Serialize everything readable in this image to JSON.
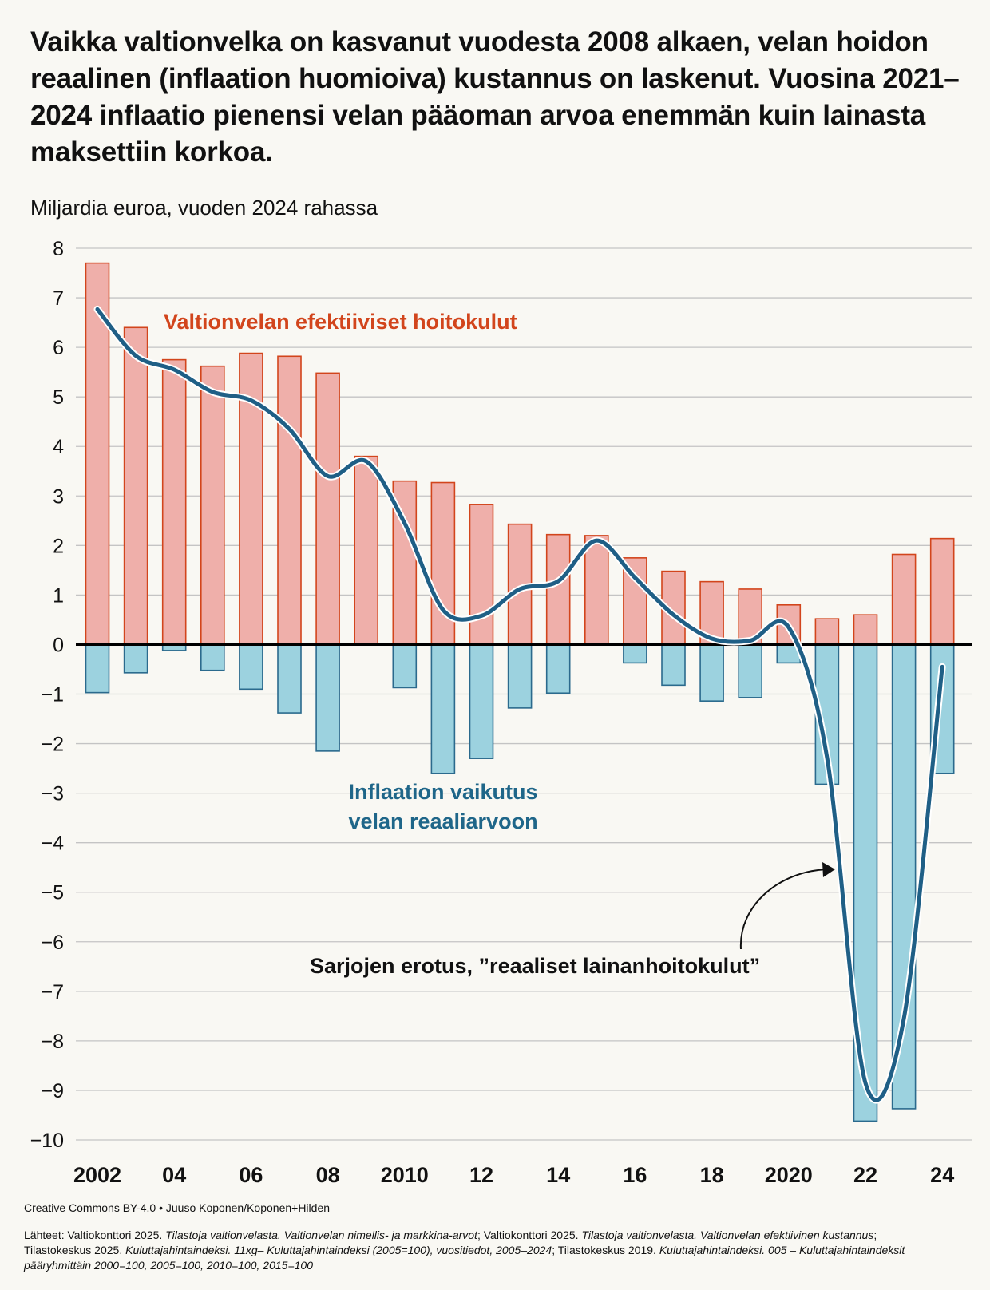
{
  "title": "Vaikka valtionvelka on kasvanut vuodesta 2008 alkaen, velan hoidon reaalinen (inflaation huomioiva) kustannus on laskenut. Vuosina 2021–2024 inflaatio pienensi velan pääoman arvoa enemmän kuin lainasta maksettiin korkoa.",
  "subtitle": "Miljardia euroa, vuoden 2024 rahassa",
  "colors": {
    "cost_fill": "#efafaa",
    "cost_stroke": "#d2451c",
    "cost_label": "#d2451c",
    "inflation_fill": "#9cd2df",
    "inflation_stroke": "#2b6a8d",
    "inflation_label": "#1f6689",
    "line": "#1f5f86",
    "grid": "#c4c4c4",
    "zero": "#000000",
    "background": "#f9f8f3"
  },
  "chart_data": {
    "type": "bar",
    "categories": [
      "2002",
      "2003",
      "2004",
      "2005",
      "2006",
      "2007",
      "2008",
      "2009",
      "2010",
      "2011",
      "2012",
      "2013",
      "2014",
      "2015",
      "2016",
      "2017",
      "2018",
      "2019",
      "2020",
      "2021",
      "2022",
      "2023",
      "2024"
    ],
    "x_tick_labels": [
      "2002",
      "",
      "04",
      "",
      "06",
      "",
      "08",
      "",
      "2010",
      "",
      "12",
      "",
      "14",
      "",
      "16",
      "",
      "18",
      "",
      "2020",
      "",
      "22",
      "",
      "24"
    ],
    "y_ticks": [
      "8",
      "7",
      "6",
      "5",
      "4",
      "3",
      "2",
      "1",
      "0",
      "−1",
      "−2",
      "−3",
      "−4",
      "−5",
      "−6",
      "−7",
      "−8",
      "−9",
      "−10"
    ],
    "ylim": [
      -10,
      8
    ],
    "ylabel": "Miljardia euroa, vuoden 2024 rahassa",
    "grid": true,
    "series": [
      {
        "name": "Valtionvelan efektiiviset hoitokulut",
        "kind": "bar",
        "values": [
          7.7,
          6.4,
          5.75,
          5.62,
          5.88,
          5.82,
          5.48,
          3.8,
          3.3,
          3.27,
          2.83,
          2.43,
          2.22,
          2.2,
          1.75,
          1.48,
          1.27,
          1.12,
          0.8,
          0.52,
          0.6,
          1.82,
          2.14
        ]
      },
      {
        "name": "Inflaation vaikutus velan reaaliarvoon",
        "kind": "bar",
        "values": [
          -0.97,
          -0.57,
          -0.12,
          -0.52,
          -0.9,
          -1.38,
          -2.15,
          0.0,
          -0.87,
          -2.6,
          -2.3,
          -1.28,
          -0.98,
          0.0,
          -0.37,
          -0.82,
          -1.14,
          -1.07,
          -0.37,
          -2.82,
          -9.62,
          -9.37,
          -2.6
        ]
      },
      {
        "name": "Sarjojen erotus, ”reaaliset lainanhoitokulut”",
        "kind": "line",
        "values": [
          6.77,
          5.83,
          5.55,
          5.1,
          4.93,
          4.35,
          3.4,
          3.7,
          2.45,
          0.7,
          0.58,
          1.12,
          1.28,
          2.1,
          1.35,
          0.6,
          0.12,
          0.08,
          0.35,
          -2.28,
          -8.85,
          -7.55,
          -0.45
        ]
      }
    ],
    "annotations": {
      "cost_label": "Valtionvelan efektiiviset hoitokulut",
      "inflation_label_line1": "Inflaation vaikutus",
      "inflation_label_line2": "velan reaaliarvoon",
      "difference_label": "Sarjojen erotus, ”reaaliset lainanhoitokulut”"
    }
  },
  "credit": "Creative Commons BY-4.0 • Juuso Koponen/Koponen+Hilden",
  "sources": {
    "p1": "Lähteet: Valtiokonttori 2025. ",
    "i1": "Tilastoja valtionvelasta. Valtionvelan nimellis- ja markkina-arvot",
    "p2": "; Valtiokonttori 2025. ",
    "i2": "Tilastoja valtionvelasta. Valtionvelan efektiivinen kustannus",
    "p3": "; Tilastokeskus 2025. ",
    "i3": "Kuluttajahintaindeksi. 11xg– Kuluttajahintaindeksi (2005=100), vuositiedot, 2005–2024",
    "p4": "; Tilastokeskus 2019. ",
    "i4": "Kuluttajahintaindeksi. 005 – Kuluttajahintaindeksit pääryhmittäin 2000=100, 2005=100, 2010=100, 2015=100"
  }
}
